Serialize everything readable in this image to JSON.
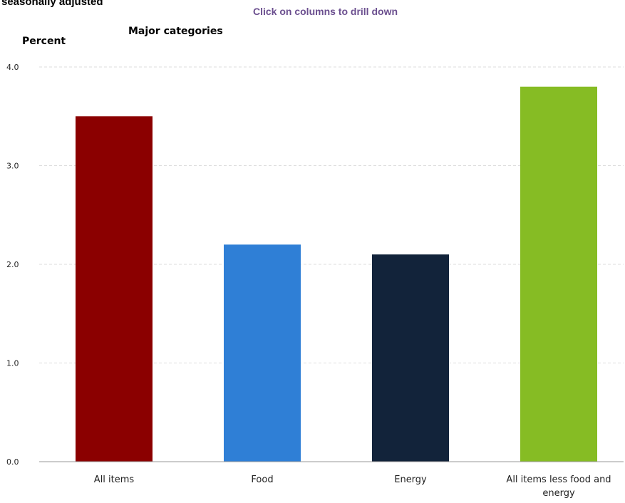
{
  "header": {
    "subtitle": "seasonally adjusted",
    "instruction": "Click on columns to drill down",
    "category_heading": "Major categories"
  },
  "chart_data": {
    "type": "bar",
    "title": "",
    "subtitle": "seasonally adjusted",
    "xlabel": "Major categories",
    "ylabel": "Percent",
    "categories": [
      "All items",
      "Food",
      "Energy",
      "All items less food and energy"
    ],
    "category_lines": [
      [
        "All items"
      ],
      [
        "Food"
      ],
      [
        "Energy"
      ],
      [
        "All items less food and",
        "energy"
      ]
    ],
    "values": [
      3.5,
      2.2,
      2.1,
      3.8
    ],
    "colors": [
      "#8b0000",
      "#2f7fd6",
      "#12233a",
      "#86bc24"
    ],
    "ylim": [
      0,
      4
    ],
    "yticks": [
      "0.0",
      "1.0",
      "2.0",
      "3.0",
      "4.0"
    ],
    "ytick_values": [
      0,
      1,
      2,
      3,
      4
    ],
    "grid": true,
    "legend": "none"
  }
}
